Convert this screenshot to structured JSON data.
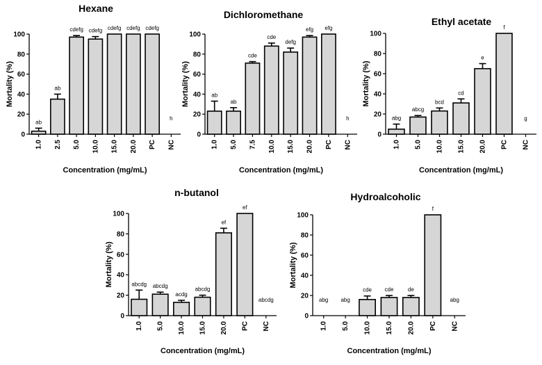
{
  "chart_data": [
    {
      "type": "bar",
      "title": "Hexane",
      "xlabel": "Concentration (mg/mL)",
      "ylabel": "Mortality (%)",
      "ylim": [
        0,
        100
      ],
      "yticks": [
        0,
        20,
        40,
        60,
        80,
        100
      ],
      "categories": [
        "1.0",
        "2.5",
        "5.0",
        "10.0",
        "15.0",
        "20.0",
        "PC",
        "NC"
      ],
      "values": [
        3,
        35,
        97,
        95,
        100,
        100,
        100,
        0
      ],
      "errors": [
        3,
        5,
        1.5,
        2.5,
        0,
        0,
        0,
        0
      ],
      "letters": [
        "ab",
        "ab",
        "cdefg",
        "cdefg",
        "cdefg",
        "cdefg",
        "cdefg",
        "h"
      ],
      "grid": false
    },
    {
      "type": "bar",
      "title": "Dichloromethane",
      "xlabel": "Concentration (mg/mL)",
      "ylabel": "Mortality (%)",
      "ylim": [
        0,
        100
      ],
      "yticks": [
        0,
        20,
        40,
        60,
        80,
        100
      ],
      "categories": [
        "1.0",
        "5.0",
        "7.5",
        "10.0",
        "15.0",
        "20.0",
        "PC",
        "NC"
      ],
      "values": [
        23,
        23,
        71,
        88,
        82,
        97,
        100,
        0
      ],
      "errors": [
        10,
        3.5,
        1.5,
        3,
        4,
        1.5,
        0,
        0
      ],
      "letters": [
        "ab",
        "ab",
        "cde",
        "cde",
        "defg",
        "efg",
        "efg",
        "h"
      ],
      "grid": false
    },
    {
      "type": "bar",
      "title": "Ethyl acetate",
      "xlabel": "Concentration (mg/mL)",
      "ylabel": "Mortality (%)",
      "ylim": [
        0,
        100
      ],
      "yticks": [
        0,
        20,
        40,
        60,
        80,
        100
      ],
      "categories": [
        "1.0",
        "5.0",
        "10.0",
        "15.0",
        "20.0",
        "PC",
        "NC"
      ],
      "values": [
        5,
        17,
        23,
        31,
        65,
        100,
        0
      ],
      "errors": [
        5,
        1.5,
        3,
        4,
        5,
        0,
        0
      ],
      "letters": [
        "abg",
        "abcg",
        "bcd",
        "cd",
        "e",
        "f",
        "g"
      ],
      "grid": false
    },
    {
      "type": "bar",
      "title": "n-butanol",
      "xlabel": "Concentration (mg/mL)",
      "ylabel": "Mortality (%)",
      "ylim": [
        0,
        100
      ],
      "yticks": [
        0,
        20,
        40,
        60,
        80,
        100
      ],
      "categories": [
        "1.0",
        "5.0",
        "10.0",
        "15.0",
        "20.0",
        "PC",
        "NC"
      ],
      "values": [
        16,
        21,
        13,
        18,
        81,
        100,
        0
      ],
      "errors": [
        9,
        2,
        2,
        2,
        4.5,
        0,
        0
      ],
      "letters": [
        "abcdg",
        "abcdg",
        "acdg",
        "abcdg",
        "ef",
        "ef",
        "abcdg"
      ],
      "grid": false
    },
    {
      "type": "bar",
      "title": "Hydroalcoholic",
      "xlabel": "Concentration (mg/mL)",
      "ylabel": "Mortality (%)",
      "ylim": [
        0,
        100
      ],
      "yticks": [
        0,
        20,
        40,
        60,
        80,
        100
      ],
      "categories": [
        "1.0",
        "5.0",
        "10.0",
        "15.0",
        "20.0",
        "PC",
        "NC"
      ],
      "values": [
        0,
        0,
        16,
        18,
        18,
        100,
        0
      ],
      "errors": [
        0,
        0,
        3.5,
        2,
        2,
        0,
        0
      ],
      "letters": [
        "abg",
        "abg",
        "cde",
        "cde",
        "de",
        "f",
        "abg"
      ],
      "grid": false
    }
  ]
}
